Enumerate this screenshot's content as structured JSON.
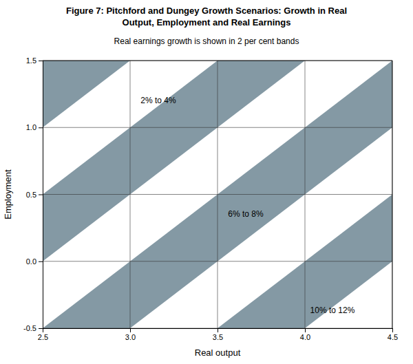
{
  "chart_data": {
    "type": "diagonal_bands",
    "title": [
      "Figure 7: Pitchford and Dungey Growth Scenarios: Growth in Real",
      "Output, Employment and Real Earnings"
    ],
    "subtitle": "Real earnings growth is shown in 2 per cent bands",
    "xlabel": "Real output",
    "ylabel": "Employment",
    "xlim": [
      2.5,
      4.5
    ],
    "ylim": [
      -0.5,
      1.5
    ],
    "xticks": [
      2.5,
      {
        "value": 3.0,
        "label": "3.0"
      },
      3.5,
      {
        "value": 4.0,
        "label": "4.0"
      },
      4.5
    ],
    "yticks": [
      -0.5,
      {
        "value": 0.0,
        "label": "0.0"
      },
      0.5,
      {
        "value": 1.0,
        "label": "1.0"
      },
      1.5
    ],
    "color": "#8499a4",
    "bands": [
      [
        1.0,
        1.5
      ],
      [
        2.0,
        2.5
      ],
      [
        3.0,
        3.5
      ],
      [
        4.0,
        4.5
      ]
    ],
    "annotations": [
      {
        "text": "2% to 4%",
        "x": 3.06,
        "y": 1.2
      },
      {
        "text": "6% to 8%",
        "x": 3.56,
        "y": 0.35
      },
      {
        "text": "10% to 12%",
        "x": 4.03,
        "y": -0.37
      }
    ],
    "grid": true
  }
}
